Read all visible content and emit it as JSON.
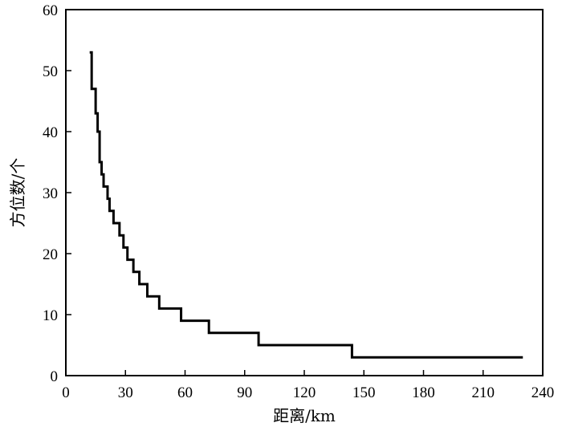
{
  "chart_data": {
    "type": "line",
    "title": "",
    "xlabel": "距离/km",
    "ylabel": "方位数/个",
    "xlim": [
      0,
      240
    ],
    "ylim": [
      0,
      60
    ],
    "xticks": [
      0,
      30,
      60,
      90,
      120,
      150,
      180,
      210,
      240
    ],
    "yticks": [
      0,
      10,
      20,
      30,
      40,
      50,
      60
    ],
    "grid": false,
    "legend": "none",
    "line_color": "#000000",
    "series": [
      {
        "step": true,
        "x": [
          12,
          13,
          15,
          16,
          17,
          18,
          19,
          21,
          22,
          24,
          27,
          29,
          31,
          34,
          37,
          41,
          47,
          58,
          72,
          97,
          144,
          230
        ],
        "y": [
          53,
          47,
          43,
          40,
          35,
          33,
          31,
          29,
          27,
          25,
          23,
          21,
          19,
          17,
          15,
          13,
          11,
          9,
          7,
          5,
          3,
          3
        ]
      }
    ]
  }
}
